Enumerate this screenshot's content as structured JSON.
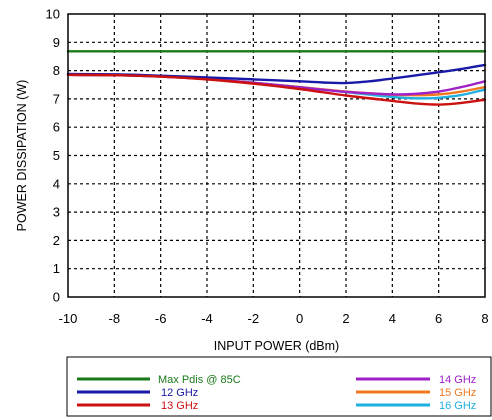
{
  "chart_data": {
    "type": "line",
    "xlabel": "INPUT POWER (dBm)",
    "ylabel": "POWER DISSIPATION (W)",
    "xlim": [
      -10,
      8
    ],
    "ylim": [
      0,
      10
    ],
    "xticks": [
      "-10",
      "-8",
      "-6",
      "-4",
      "-2",
      "0",
      "2",
      "4",
      "6",
      "8"
    ],
    "yticks": [
      "0",
      "1",
      "2",
      "3",
      "4",
      "5",
      "6",
      "7",
      "8",
      "9",
      "10"
    ],
    "grid": true,
    "legend_position": "bottom",
    "series": [
      {
        "name": "Max Pdis @ 85C",
        "color": "#1a7a1a",
        "x": [
          -10,
          8
        ],
        "y": [
          8.68,
          8.68
        ]
      },
      {
        "name": "12 GHz",
        "color": "#1a1aa8",
        "x": [
          -10,
          -8,
          -6,
          -4,
          -2,
          0,
          1,
          2,
          3,
          4,
          5,
          6,
          7,
          8
        ],
        "y": [
          7.88,
          7.87,
          7.82,
          7.76,
          7.69,
          7.62,
          7.58,
          7.56,
          7.62,
          7.72,
          7.83,
          7.94,
          8.06,
          8.2
        ]
      },
      {
        "name": "13 GHz",
        "color": "#cc1111",
        "x": [
          -10,
          -8,
          -6,
          -4,
          -2,
          0,
          2,
          4,
          5,
          6,
          7,
          8
        ],
        "y": [
          7.85,
          7.84,
          7.79,
          7.69,
          7.54,
          7.35,
          7.12,
          6.93,
          6.84,
          6.8,
          6.86,
          6.97
        ]
      },
      {
        "name": "14 GHz",
        "color": "#a020c8",
        "x": [
          -10,
          -8,
          -6,
          -4,
          -2,
          0,
          2,
          4,
          5,
          6,
          7,
          8
        ],
        "y": [
          7.85,
          7.84,
          7.79,
          7.7,
          7.57,
          7.41,
          7.25,
          7.16,
          7.18,
          7.26,
          7.42,
          7.62
        ]
      },
      {
        "name": "15 GHz",
        "color": "#f07820",
        "x": [
          -10,
          -8,
          -6,
          -4,
          -2,
          0,
          2,
          4,
          5,
          6,
          7,
          8
        ],
        "y": [
          7.85,
          7.84,
          7.79,
          7.7,
          7.57,
          7.42,
          7.26,
          7.15,
          7.13,
          7.16,
          7.26,
          7.42
        ]
      },
      {
        "name": "16 GHz",
        "color": "#20b0e0",
        "x": [
          -10,
          -8,
          -6,
          -4,
          -2,
          0,
          2,
          4,
          5,
          6,
          7,
          8
        ],
        "y": [
          7.85,
          7.84,
          7.79,
          7.7,
          7.57,
          7.42,
          7.24,
          7.07,
          7.02,
          7.04,
          7.14,
          7.33
        ]
      }
    ]
  }
}
